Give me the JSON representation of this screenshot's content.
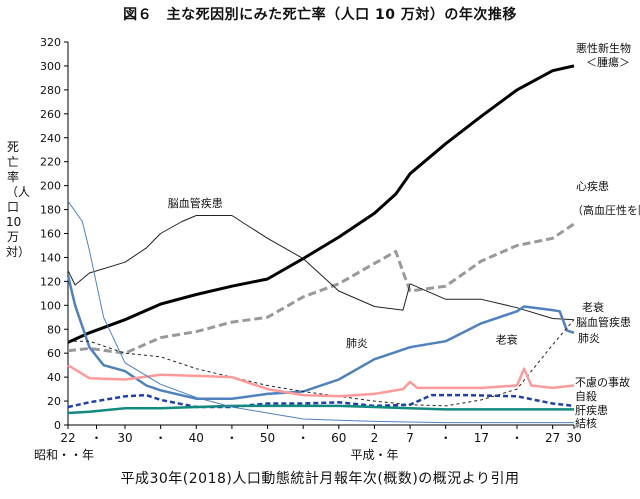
{
  "title": "図６　主な死因別にみた死亡率（人口 10 万対）の年次推移",
  "caption": "平成30年(2018)人口動態統計月報年次(概数)の概況より引用",
  "chart_data": {
    "type": "line",
    "ylabel": "死亡率（人口10万対）",
    "ylim": [
      0,
      320
    ],
    "yticks": [
      0,
      20,
      40,
      60,
      80,
      100,
      120,
      140,
      160,
      180,
      200,
      220,
      240,
      260,
      280,
      300,
      320
    ],
    "xlim": [
      1947,
      2018
    ],
    "x_tick_labels": [
      {
        "year": 1947,
        "label": "22"
      },
      {
        "year": 1951,
        "label": "・"
      },
      {
        "year": 1955,
        "label": "30"
      },
      {
        "year": 1960,
        "label": "・"
      },
      {
        "year": 1965,
        "label": "40"
      },
      {
        "year": 1970,
        "label": "・"
      },
      {
        "year": 1975,
        "label": "50"
      },
      {
        "year": 1980,
        "label": "・"
      },
      {
        "year": 1985,
        "label": "60"
      },
      {
        "year": 1990,
        "label": "2"
      },
      {
        "year": 1995,
        "label": "7"
      },
      {
        "year": 2000,
        "label": "・"
      },
      {
        "year": 2005,
        "label": "17"
      },
      {
        "year": 2010,
        "label": "・"
      },
      {
        "year": 2015,
        "label": "27"
      },
      {
        "year": 2018,
        "label": "30"
      }
    ],
    "era_label_showa": "昭和・・年",
    "era_label_heisei": "平成・年",
    "series": [
      {
        "name": "悪性新生物\n＜腫瘍＞",
        "color": "#000000",
        "width": 3,
        "dash": "",
        "points": [
          [
            1947,
            69
          ],
          [
            1950,
            77
          ],
          [
            1955,
            88
          ],
          [
            1960,
            101
          ],
          [
            1965,
            109
          ],
          [
            1970,
            116
          ],
          [
            1975,
            122
          ],
          [
            1980,
            139
          ],
          [
            1985,
            157
          ],
          [
            1990,
            177
          ],
          [
            1993,
            193
          ],
          [
            1995,
            210
          ],
          [
            2000,
            235
          ],
          [
            2005,
            258
          ],
          [
            2010,
            280
          ],
          [
            2015,
            296
          ],
          [
            2018,
            300
          ]
        ]
      },
      {
        "name": "心疾患\n（高血圧性を除く）",
        "color": "#999999",
        "width": 3,
        "dash": "8,4",
        "points": [
          [
            1947,
            62
          ],
          [
            1950,
            64
          ],
          [
            1955,
            60
          ],
          [
            1960,
            73
          ],
          [
            1965,
            78
          ],
          [
            1970,
            86
          ],
          [
            1975,
            90
          ],
          [
            1980,
            107
          ],
          [
            1985,
            118
          ],
          [
            1990,
            135
          ],
          [
            1993,
            145
          ],
          [
            1994,
            128
          ],
          [
            1995,
            112
          ],
          [
            2000,
            116
          ],
          [
            2005,
            137
          ],
          [
            2010,
            150
          ],
          [
            2015,
            156
          ],
          [
            2018,
            168
          ]
        ]
      },
      {
        "name": "脳血管疾患",
        "color": "#222222",
        "width": 1,
        "dash": "",
        "points": [
          [
            1947,
            129
          ],
          [
            1948,
            117
          ],
          [
            1950,
            127
          ],
          [
            1955,
            136
          ],
          [
            1958,
            148
          ],
          [
            1960,
            160
          ],
          [
            1963,
            170
          ],
          [
            1965,
            175
          ],
          [
            1970,
            175
          ],
          [
            1975,
            156
          ],
          [
            1980,
            139
          ],
          [
            1985,
            112
          ],
          [
            1990,
            99
          ],
          [
            1994,
            96
          ],
          [
            1995,
            118
          ],
          [
            2000,
            105
          ],
          [
            2005,
            105
          ],
          [
            2010,
            98
          ],
          [
            2015,
            89
          ],
          [
            2018,
            88
          ]
        ]
      },
      {
        "name": "肺炎",
        "color": "#4f81bd",
        "width": 2.5,
        "dash": "",
        "points": [
          [
            1947,
            125
          ],
          [
            1948,
            100
          ],
          [
            1950,
            65
          ],
          [
            1952,
            50
          ],
          [
            1955,
            45
          ],
          [
            1958,
            33
          ],
          [
            1960,
            29
          ],
          [
            1965,
            22
          ],
          [
            1970,
            22
          ],
          [
            1975,
            26
          ],
          [
            1980,
            28
          ],
          [
            1985,
            38
          ],
          [
            1990,
            55
          ],
          [
            1995,
            65
          ],
          [
            2000,
            70
          ],
          [
            2005,
            85
          ],
          [
            2010,
            95
          ],
          [
            2011,
            99
          ],
          [
            2015,
            96
          ],
          [
            2016,
            95
          ],
          [
            2017,
            79
          ],
          [
            2018,
            77
          ]
        ]
      },
      {
        "name": "老衰",
        "color": "#222222",
        "width": 1,
        "dash": "3,3",
        "points": [
          [
            1947,
            70
          ],
          [
            1950,
            70
          ],
          [
            1955,
            60
          ],
          [
            1960,
            57
          ],
          [
            1965,
            47
          ],
          [
            1970,
            40
          ],
          [
            1975,
            33
          ],
          [
            1980,
            28
          ],
          [
            1985,
            24
          ],
          [
            1990,
            20
          ],
          [
            1995,
            17
          ],
          [
            2000,
            16
          ],
          [
            2005,
            21
          ],
          [
            2010,
            30
          ],
          [
            2015,
            67
          ],
          [
            2018,
            88
          ]
        ]
      },
      {
        "name": "不慮の事故",
        "color": "#ff9a9a",
        "width": 2.5,
        "dash": "",
        "points": [
          [
            1947,
            50
          ],
          [
            1950,
            39
          ],
          [
            1955,
            38
          ],
          [
            1960,
            42
          ],
          [
            1965,
            41
          ],
          [
            1970,
            40
          ],
          [
            1975,
            30
          ],
          [
            1980,
            25
          ],
          [
            1985,
            24
          ],
          [
            1990,
            26
          ],
          [
            1994,
            30
          ],
          [
            1995,
            36
          ],
          [
            1996,
            31
          ],
          [
            2000,
            31
          ],
          [
            2005,
            31
          ],
          [
            2010,
            33
          ],
          [
            2011,
            47
          ],
          [
            2012,
            33
          ],
          [
            2015,
            31
          ],
          [
            2018,
            33
          ]
        ]
      },
      {
        "name": "自殺",
        "color": "#1f3faa",
        "width": 2.5,
        "dash": "5,3",
        "points": [
          [
            1947,
            15
          ],
          [
            1950,
            19
          ],
          [
            1955,
            24
          ],
          [
            1958,
            25
          ],
          [
            1960,
            21
          ],
          [
            1965,
            15
          ],
          [
            1970,
            15
          ],
          [
            1975,
            18
          ],
          [
            1980,
            18
          ],
          [
            1985,
            19
          ],
          [
            1990,
            16
          ],
          [
            1995,
            17
          ],
          [
            1998,
            25
          ],
          [
            2003,
            25
          ],
          [
            2010,
            24
          ],
          [
            2015,
            18
          ],
          [
            2018,
            16
          ]
        ]
      },
      {
        "name": "肝疾患",
        "color": "#138a7e",
        "width": 2.5,
        "dash": "",
        "points": [
          [
            1947,
            10
          ],
          [
            1950,
            11
          ],
          [
            1955,
            14
          ],
          [
            1960,
            14
          ],
          [
            1965,
            15
          ],
          [
            1970,
            16
          ],
          [
            1975,
            16
          ],
          [
            1980,
            16
          ],
          [
            1985,
            16
          ],
          [
            1990,
            15
          ],
          [
            1995,
            14
          ],
          [
            2000,
            13
          ],
          [
            2005,
            13
          ],
          [
            2010,
            13
          ],
          [
            2015,
            13
          ],
          [
            2018,
            13
          ]
        ]
      },
      {
        "name": "結核",
        "color": "#4f81bd",
        "width": 1,
        "dash": "",
        "points": [
          [
            1947,
            187
          ],
          [
            1949,
            170
          ],
          [
            1950,
            146
          ],
          [
            1952,
            90
          ],
          [
            1955,
            52
          ],
          [
            1960,
            34
          ],
          [
            1965,
            23
          ],
          [
            1970,
            15
          ],
          [
            1975,
            10
          ],
          [
            1980,
            5
          ],
          [
            1985,
            4
          ],
          [
            1990,
            3
          ],
          [
            2000,
            2
          ],
          [
            2010,
            2
          ],
          [
            2018,
            2
          ]
        ]
      }
    ],
    "annotations": [
      {
        "text": "脳血管疾患",
        "series": "脳血管疾患"
      },
      {
        "text": "肺炎",
        "series": "肺炎"
      },
      {
        "text": "老衰",
        "series": "老衰"
      }
    ],
    "right_labels": [
      {
        "text": "悪性新生物",
        "series": "悪性新生物\n＜腫瘍＞"
      },
      {
        "text": "＜腫瘍＞",
        "series": "悪性新生物\n＜腫瘍＞"
      },
      {
        "text": "心疾患",
        "series": "心疾患\n（高血圧性を除く）"
      },
      {
        "text": "（高血圧性を除く）",
        "series": "心疾患\n（高血圧性を除く）"
      },
      {
        "text": "老衰",
        "series": "老衰"
      },
      {
        "text": "脳血管疾患",
        "series": "脳血管疾患"
      },
      {
        "text": "肺炎",
        "series": "肺炎"
      },
      {
        "text": "不慮の事故",
        "series": "不慮の事故"
      },
      {
        "text": "自殺",
        "series": "自殺"
      },
      {
        "text": "肝疾患",
        "series": "肝疾患"
      },
      {
        "text": "結核",
        "series": "結核"
      }
    ],
    "grid": false
  }
}
